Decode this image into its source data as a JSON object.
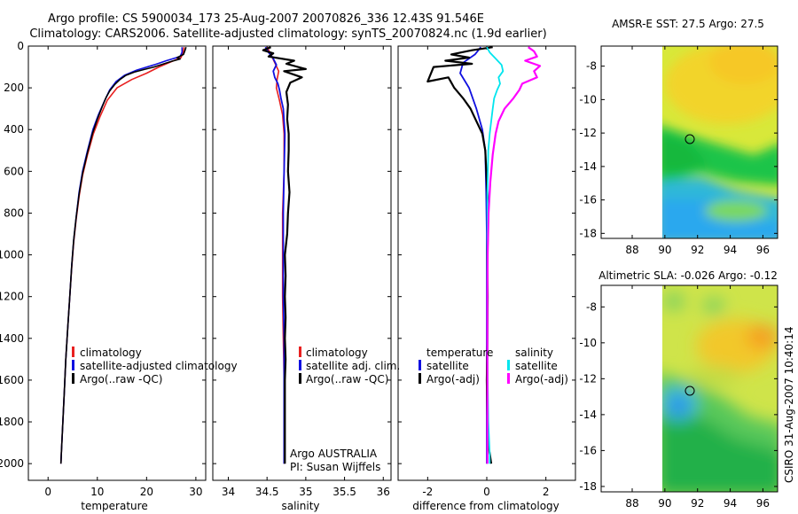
{
  "header": {
    "title_line1": "Argo profile: CS 5900034_173 25-Aug-2007 20070826_336 12.43S 91.546E",
    "title_line2": "Climatology: CARS2006. Satellite-adjusted climatology: synTS_20070824.nc (1.9d earlier)"
  },
  "footer_vertical": "CSIRO 31-Aug-2007 10:40:14",
  "colors": {
    "climatology": "#e82020",
    "satellite": "#1010e0",
    "argo": "#000000",
    "sat_salinity": "#00e5ee",
    "argo_adj_salinity": "#ff00ff"
  },
  "chart_data": [
    {
      "id": "temperature",
      "type": "line",
      "xlabel": "temperature",
      "xlim": [
        -4,
        32
      ],
      "ylim": [
        0,
        2080
      ],
      "xticks": [
        "0",
        "10",
        "20",
        "30"
      ],
      "yticks": [
        "0",
        "200",
        "400",
        "600",
        "800",
        "1000",
        "1200",
        "1400",
        "1600",
        "1800",
        "2000"
      ],
      "legend": [
        "climatology",
        "satellite-adjusted climatology",
        "Argo(..raw -QC)"
      ],
      "series": [
        {
          "name": "climatology",
          "color": "#e82020",
          "width": 1.6,
          "points": [
            [
              27.6,
              5
            ],
            [
              27.4,
              30
            ],
            [
              27,
              55
            ],
            [
              25,
              75
            ],
            [
              22.5,
              100
            ],
            [
              20,
              130
            ],
            [
              17,
              160
            ],
            [
              14,
              200
            ],
            [
              12,
              260
            ],
            [
              10.5,
              340
            ],
            [
              9.2,
              420
            ],
            [
              8,
              520
            ],
            [
              7,
              620
            ],
            [
              6.3,
              720
            ],
            [
              5.7,
              830
            ],
            [
              5.2,
              940
            ],
            [
              4.8,
              1060
            ],
            [
              4.4,
              1200
            ],
            [
              4,
              1350
            ],
            [
              3.6,
              1500
            ],
            [
              3.3,
              1650
            ],
            [
              3,
              1800
            ],
            [
              2.7,
              1950
            ],
            [
              2.6,
              2000
            ]
          ]
        },
        {
          "name": "satellite",
          "color": "#1010e0",
          "width": 1.6,
          "points": [
            [
              27.2,
              5
            ],
            [
              27.2,
              30
            ],
            [
              26.8,
              50
            ],
            [
              24,
              70
            ],
            [
              21.5,
              90
            ],
            [
              18,
              115
            ],
            [
              15.5,
              140
            ],
            [
              13.8,
              170
            ],
            [
              12.5,
              210
            ],
            [
              11.5,
              260
            ],
            [
              10.2,
              330
            ],
            [
              9.1,
              400
            ],
            [
              8,
              500
            ],
            [
              7,
              600
            ],
            [
              6.3,
              700
            ],
            [
              5.7,
              820
            ],
            [
              5.2,
              930
            ],
            [
              4.8,
              1050
            ],
            [
              4.4,
              1200
            ],
            [
              4,
              1350
            ],
            [
              3.6,
              1500
            ],
            [
              3.3,
              1650
            ],
            [
              3,
              1800
            ],
            [
              2.7,
              1950
            ],
            [
              2.6,
              2000
            ]
          ]
        },
        {
          "name": "argo",
          "color": "#000000",
          "width": 1.6,
          "points": [
            [
              28,
              5
            ],
            [
              27.8,
              20
            ],
            [
              27.5,
              40
            ],
            [
              26.2,
              55
            ],
            [
              26.8,
              62
            ],
            [
              25.2,
              72
            ],
            [
              23.5,
              85
            ],
            [
              21.5,
              100
            ],
            [
              19.5,
              112
            ],
            [
              17.5,
              125
            ],
            [
              15.8,
              140
            ],
            [
              14.6,
              160
            ],
            [
              13.5,
              185
            ],
            [
              12.5,
              215
            ],
            [
              11.8,
              245
            ],
            [
              11,
              290
            ],
            [
              10,
              350
            ],
            [
              9,
              420
            ],
            [
              8,
              510
            ],
            [
              7,
              610
            ],
            [
              6.3,
              710
            ],
            [
              5.7,
              820
            ],
            [
              5.2,
              930
            ],
            [
              4.8,
              1050
            ],
            [
              4.4,
              1200
            ],
            [
              4,
              1350
            ],
            [
              3.6,
              1500
            ],
            [
              3.3,
              1650
            ],
            [
              3,
              1800
            ],
            [
              2.7,
              1950
            ],
            [
              2.6,
              2000
            ]
          ]
        }
      ]
    },
    {
      "id": "salinity",
      "type": "line",
      "xlabel": "salinity",
      "xlim": [
        33.8,
        36.1
      ],
      "ylim": [
        0,
        2080
      ],
      "xticks": [
        "34",
        "34.5",
        "35",
        "35.5",
        "36"
      ],
      "legend": [
        "climatology",
        "satellite adj. clim.",
        "Argo(..raw -QC)"
      ],
      "annotations": [
        "Argo AUSTRALIA",
        "PI: Susan Wijffels"
      ],
      "series": [
        {
          "name": "climatology",
          "color": "#e82020",
          "width": 1.6,
          "points": [
            [
              34.5,
              5
            ],
            [
              34.55,
              40
            ],
            [
              34.6,
              80
            ],
            [
              34.65,
              120
            ],
            [
              34.63,
              160
            ],
            [
              34.62,
              200
            ],
            [
              34.66,
              260
            ],
            [
              34.7,
              330
            ],
            [
              34.72,
              420
            ],
            [
              34.72,
              600
            ],
            [
              34.7,
              800
            ],
            [
              34.7,
              1000
            ],
            [
              34.7,
              1200
            ],
            [
              34.71,
              1400
            ],
            [
              34.72,
              1600
            ],
            [
              34.72,
              1800
            ],
            [
              34.72,
              2000
            ]
          ]
        },
        {
          "name": "satellite",
          "color": "#1010e0",
          "width": 1.8,
          "points": [
            [
              34.48,
              5
            ],
            [
              34.52,
              30
            ],
            [
              34.58,
              60
            ],
            [
              34.62,
              90
            ],
            [
              34.58,
              120
            ],
            [
              34.6,
              150
            ],
            [
              34.64,
              180
            ],
            [
              34.66,
              210
            ],
            [
              34.68,
              250
            ],
            [
              34.71,
              300
            ],
            [
              34.72,
              360
            ],
            [
              34.73,
              420
            ],
            [
              34.72,
              600
            ],
            [
              34.71,
              800
            ],
            [
              34.71,
              1000
            ],
            [
              34.71,
              1200
            ],
            [
              34.72,
              1400
            ],
            [
              34.72,
              1600
            ],
            [
              34.72,
              1800
            ],
            [
              34.72,
              2000
            ]
          ]
        },
        {
          "name": "argo",
          "color": "#000000",
          "width": 2.2,
          "points": [
            [
              34.55,
              5
            ],
            [
              34.45,
              20
            ],
            [
              34.58,
              35
            ],
            [
              34.52,
              50
            ],
            [
              34.85,
              70
            ],
            [
              34.75,
              85
            ],
            [
              35,
              110
            ],
            [
              34.72,
              120
            ],
            [
              34.95,
              150
            ],
            [
              34.8,
              175
            ],
            [
              34.75,
              220
            ],
            [
              34.77,
              280
            ],
            [
              34.76,
              350
            ],
            [
              34.78,
              420
            ],
            [
              34.78,
              500
            ],
            [
              34.77,
              600
            ],
            [
              34.79,
              700
            ],
            [
              34.77,
              800
            ],
            [
              34.76,
              900
            ],
            [
              34.73,
              1000
            ],
            [
              34.74,
              1100
            ],
            [
              34.73,
              1200
            ],
            [
              34.74,
              1300
            ],
            [
              34.73,
              1400
            ],
            [
              34.74,
              1500
            ],
            [
              34.73,
              1600
            ],
            [
              34.73,
              1700
            ],
            [
              34.73,
              1800
            ],
            [
              34.73,
              1900
            ],
            [
              34.73,
              2000
            ]
          ]
        }
      ]
    },
    {
      "id": "difference",
      "type": "line",
      "xlabel": "difference from climatology",
      "xlim": [
        -3,
        3
      ],
      "ylim": [
        0,
        2080
      ],
      "xticks": [
        "-2",
        "0",
        "2"
      ],
      "legend_headers": [
        "temperature",
        "salinity"
      ],
      "legend": [
        "satellite",
        "Argo(-adj)",
        "satellite",
        "Argo(-adj)"
      ],
      "series": [
        {
          "name": "satellite temperature",
          "color": "#1010e0",
          "width": 1.8,
          "points": [
            [
              -0.2,
              5
            ],
            [
              -0.4,
              40
            ],
            [
              -0.8,
              80
            ],
            [
              -0.9,
              130
            ],
            [
              -0.6,
              200
            ],
            [
              -0.35,
              300
            ],
            [
              -0.15,
              400
            ],
            [
              -0.05,
              500
            ],
            [
              -0.02,
              700
            ],
            [
              0,
              900
            ],
            [
              0,
              1200
            ],
            [
              0,
              1500
            ],
            [
              0,
              1800
            ],
            [
              0,
              2000
            ]
          ]
        },
        {
          "name": "argo temperature",
          "color": "#000000",
          "width": 2.2,
          "points": [
            [
              0.2,
              5
            ],
            [
              -0.5,
              20
            ],
            [
              -1.2,
              40
            ],
            [
              -0.6,
              55
            ],
            [
              -1.4,
              70
            ],
            [
              -0.5,
              85
            ],
            [
              -1.8,
              100
            ],
            [
              -2,
              170
            ],
            [
              -1.3,
              150
            ],
            [
              -1.1,
              200
            ],
            [
              -0.8,
              250
            ],
            [
              -0.55,
              300
            ],
            [
              -0.35,
              360
            ],
            [
              -0.15,
              420
            ],
            [
              -0.05,
              500
            ],
            [
              0,
              650
            ],
            [
              0.05,
              800
            ],
            [
              0.02,
              1000
            ],
            [
              0.03,
              1200
            ],
            [
              0.02,
              1400
            ],
            [
              0,
              1600
            ],
            [
              0.02,
              1800
            ],
            [
              0.03,
              1900
            ],
            [
              0.1,
              1950
            ],
            [
              0.15,
              2000
            ]
          ]
        },
        {
          "name": "satellite salinity",
          "color": "#00e5ee",
          "width": 1.8,
          "points": [
            [
              0,
              5
            ],
            [
              0.1,
              30
            ],
            [
              0.3,
              60
            ],
            [
              0.5,
              90
            ],
            [
              0.55,
              120
            ],
            [
              0.4,
              150
            ],
            [
              0.45,
              180
            ],
            [
              0.35,
              210
            ],
            [
              0.25,
              250
            ],
            [
              0.2,
              300
            ],
            [
              0.15,
              360
            ],
            [
              0.1,
              420
            ],
            [
              0.05,
              500
            ],
            [
              0.02,
              700
            ],
            [
              0.02,
              1000
            ],
            [
              0.02,
              1300
            ],
            [
              0.03,
              1600
            ],
            [
              0.05,
              1800
            ],
            [
              0.1,
              1950
            ],
            [
              0.1,
              2000
            ]
          ]
        },
        {
          "name": "argo adj salinity",
          "color": "#ff00ff",
          "width": 2.2,
          "points": [
            [
              1.4,
              5
            ],
            [
              1.6,
              25
            ],
            [
              1.7,
              50
            ],
            [
              1.3,
              70
            ],
            [
              1.8,
              95
            ],
            [
              1.6,
              120
            ],
            [
              1.7,
              150
            ],
            [
              1.2,
              180
            ],
            [
              1.1,
              210
            ],
            [
              0.9,
              250
            ],
            [
              0.6,
              300
            ],
            [
              0.4,
              360
            ],
            [
              0.3,
              420
            ],
            [
              0.2,
              520
            ],
            [
              0.12,
              650
            ],
            [
              0.06,
              800
            ],
            [
              0.03,
              1000
            ],
            [
              0.02,
              1200
            ],
            [
              0.02,
              1500
            ],
            [
              0.02,
              1800
            ],
            [
              0.02,
              2000
            ]
          ]
        }
      ]
    }
  ],
  "maps": {
    "sst": {
      "title": "AMSR-E SST: 27.5 Argo: 27.5",
      "xticks": [
        "88",
        "90",
        "92",
        "94",
        "96"
      ],
      "yticks": [
        "-8",
        "-10",
        "-12",
        "-14",
        "-16",
        "-18"
      ],
      "marker": [
        91.55,
        -12.43
      ]
    },
    "sla": {
      "title": "Altimetric SLA: -0.026 Argo: -0.12",
      "xticks": [
        "88",
        "90",
        "92",
        "94",
        "96"
      ],
      "yticks": [
        "-8",
        "-10",
        "-12",
        "-14",
        "-16",
        "-18"
      ],
      "marker": [
        91.55,
        -12.43
      ]
    }
  }
}
